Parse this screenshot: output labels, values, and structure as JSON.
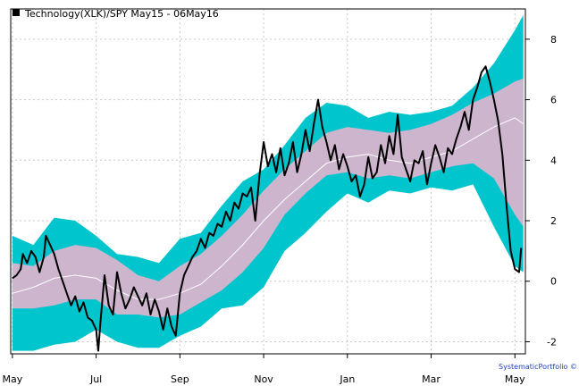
{
  "chart_data": {
    "type": "line",
    "legend_text": "Technology(XLK)/SPY May15 - 06May16",
    "legend_marker_color": "#000000",
    "legend_placement": "top-left",
    "footer_text": "SystematicPortfolio ©",
    "x_tick_labels": [
      "May",
      "Jul",
      "Sep",
      "Nov",
      "Jan",
      "Mar",
      "May"
    ],
    "x_ticks_month_index": [
      0,
      2,
      4,
      6,
      8,
      10,
      12
    ],
    "x_range_month_index": [
      -0.04,
      12.25
    ],
    "y_tick_labels": [
      "-2",
      "0",
      "2",
      "4",
      "6",
      "8"
    ],
    "y_ticks": [
      -2,
      0,
      2,
      4,
      6,
      8
    ],
    "ylim": [
      -2.4,
      9.0
    ],
    "y_axis_side": "right",
    "grid": true,
    "colors": {
      "outer_band": "#00c5cd",
      "inner_band": "#cdb5cd",
      "center_line": "#ffffff",
      "price_line": "#000000",
      "grid": "#c8c8c8",
      "axis": "#000000"
    },
    "band": {
      "x_month_index": [
        0.0,
        0.5,
        1.0,
        1.5,
        2.0,
        2.5,
        3.0,
        3.5,
        4.0,
        4.5,
        5.0,
        5.5,
        6.0,
        6.5,
        7.0,
        7.5,
        8.0,
        8.5,
        9.0,
        9.5,
        10.0,
        10.5,
        11.0,
        11.5,
        12.0,
        12.2
      ],
      "center": [
        -0.4,
        -0.2,
        0.1,
        0.2,
        0.1,
        -0.3,
        -0.6,
        -0.6,
        -0.4,
        -0.1,
        0.5,
        1.2,
        2.0,
        2.7,
        3.3,
        3.9,
        4.1,
        4.2,
        4.0,
        3.9,
        4.1,
        4.3,
        4.7,
        5.1,
        5.4,
        5.2
      ],
      "outer_upper": [
        1.5,
        1.2,
        2.1,
        2.0,
        1.5,
        0.9,
        0.8,
        0.6,
        1.4,
        1.6,
        2.5,
        3.3,
        3.7,
        4.5,
        5.4,
        5.9,
        5.8,
        5.4,
        5.6,
        5.5,
        5.6,
        5.8,
        6.4,
        7.2,
        8.3,
        8.8
      ],
      "inner_upper": [
        0.6,
        0.5,
        1.0,
        1.2,
        1.1,
        0.7,
        0.2,
        0.0,
        0.5,
        0.9,
        1.5,
        2.2,
        3.0,
        3.7,
        4.3,
        4.9,
        5.1,
        5.0,
        4.9,
        5.0,
        5.2,
        5.5,
        5.9,
        6.2,
        6.6,
        6.7
      ],
      "inner_lower": [
        -0.9,
        -0.9,
        -0.8,
        -0.6,
        -0.6,
        -1.1,
        -1.1,
        -1.2,
        -1.1,
        -0.7,
        -0.3,
        0.3,
        1.1,
        2.2,
        2.9,
        3.5,
        3.6,
        3.4,
        3.5,
        3.4,
        3.6,
        3.8,
        3.9,
        3.4,
        2.2,
        1.8
      ],
      "outer_lower": [
        -2.3,
        -2.3,
        -2.1,
        -2.0,
        -1.6,
        -2.0,
        -2.2,
        -2.2,
        -1.8,
        -1.5,
        -0.9,
        -0.8,
        -0.2,
        1.0,
        1.6,
        2.3,
        2.9,
        2.6,
        3.0,
        2.9,
        3.1,
        3.0,
        3.2,
        1.8,
        0.5,
        0.3
      ]
    },
    "series": [
      {
        "x_month_index": [
          0.0,
          0.1,
          0.2,
          0.25,
          0.35,
          0.45,
          0.55,
          0.65,
          0.75,
          0.8,
          0.9,
          1.0,
          1.1,
          1.2,
          1.3,
          1.4,
          1.5,
          1.6,
          1.7,
          1.8,
          1.9,
          2.0,
          2.05,
          2.1,
          2.2,
          2.3,
          2.4,
          2.5,
          2.6,
          2.7,
          2.8,
          2.9,
          3.0,
          3.1,
          3.2,
          3.3,
          3.4,
          3.5,
          3.6,
          3.7,
          3.8,
          3.9,
          4.0,
          4.1,
          4.2,
          4.3,
          4.4,
          4.5,
          4.6,
          4.7,
          4.8,
          4.9,
          5.0,
          5.1,
          5.2,
          5.3,
          5.4,
          5.5,
          5.6,
          5.7,
          5.8,
          5.9,
          6.0,
          6.1,
          6.2,
          6.3,
          6.4,
          6.5,
          6.6,
          6.7,
          6.8,
          6.9,
          7.0,
          7.1,
          7.2,
          7.3,
          7.4,
          7.5,
          7.6,
          7.7,
          7.8,
          7.9,
          8.0,
          8.1,
          8.2,
          8.3,
          8.4,
          8.5,
          8.6,
          8.7,
          8.8,
          8.9,
          9.0,
          9.1,
          9.2,
          9.3,
          9.4,
          9.5,
          9.6,
          9.7,
          9.8,
          9.9,
          10.0,
          10.1,
          10.2,
          10.3,
          10.4,
          10.5,
          10.6,
          10.7,
          10.8,
          10.9,
          11.0,
          11.1,
          11.2,
          11.3,
          11.4,
          11.5,
          11.6,
          11.7,
          11.8,
          11.9,
          12.0,
          12.1,
          12.15
        ],
        "values": [
          0.1,
          0.2,
          0.4,
          0.9,
          0.6,
          1.0,
          0.8,
          0.3,
          0.8,
          1.5,
          1.2,
          0.9,
          0.4,
          0.0,
          -0.4,
          -0.8,
          -0.5,
          -1.0,
          -0.7,
          -1.2,
          -1.3,
          -1.6,
          -2.3,
          -1.4,
          0.2,
          -0.8,
          -1.1,
          0.3,
          -0.4,
          -0.9,
          -0.6,
          -0.2,
          -0.5,
          -0.8,
          -0.4,
          -1.1,
          -0.6,
          -1.0,
          -1.6,
          -0.9,
          -1.5,
          -1.8,
          -0.4,
          0.2,
          0.5,
          0.8,
          1.0,
          1.4,
          1.1,
          1.6,
          1.5,
          1.9,
          1.8,
          2.3,
          2.0,
          2.6,
          2.4,
          2.9,
          2.8,
          3.1,
          2.0,
          3.5,
          4.6,
          3.8,
          4.2,
          3.6,
          4.4,
          3.5,
          3.9,
          4.6,
          3.6,
          4.2,
          5.0,
          4.3,
          5.2,
          6.0,
          5.1,
          4.6,
          4.0,
          4.5,
          3.7,
          4.2,
          3.8,
          3.3,
          3.5,
          2.8,
          3.2,
          4.1,
          3.4,
          3.6,
          4.5,
          3.9,
          4.8,
          4.2,
          5.5,
          4.1,
          3.7,
          3.3,
          4.0,
          3.9,
          4.3,
          3.2,
          3.9,
          4.5,
          4.1,
          3.6,
          4.4,
          4.2,
          4.7,
          5.1,
          5.6,
          5.0,
          6.0,
          6.4,
          6.9,
          7.1,
          6.6,
          6.0,
          5.3,
          4.2,
          2.5,
          1.0,
          0.4,
          0.3,
          1.1
        ]
      }
    ]
  }
}
